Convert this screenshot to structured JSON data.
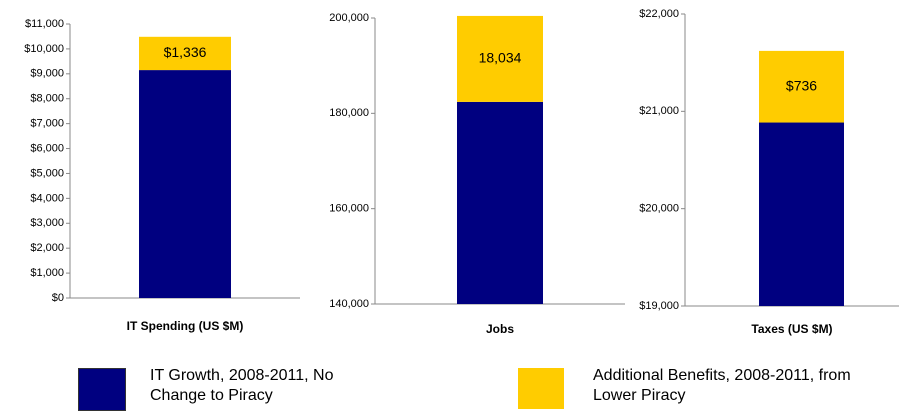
{
  "chart_data": [
    {
      "type": "bar",
      "categories": [
        "IT Spending (US $M)"
      ],
      "series": [
        {
          "name": "IT Growth, 2008-2011, No Change to Piracy",
          "color": "#000080",
          "values": [
            9150
          ]
        },
        {
          "name": "Additional Benefits, 2008-2011, from Lower Piracy",
          "color": "#ffcc00",
          "values": [
            1336
          ],
          "value_labels": [
            "$1,336"
          ]
        }
      ],
      "ylim": [
        0,
        11000
      ],
      "yticks": [
        {
          "value": 0,
          "label": "$0"
        },
        {
          "value": 1000,
          "label": "$1,000"
        },
        {
          "value": 2000,
          "label": "$2,000"
        },
        {
          "value": 3000,
          "label": "$3,000"
        },
        {
          "value": 4000,
          "label": "$4,000"
        },
        {
          "value": 5000,
          "label": "$5,000"
        },
        {
          "value": 6000,
          "label": "$6,000"
        },
        {
          "value": 7000,
          "label": "$7,000"
        },
        {
          "value": 8000,
          "label": "$8,000"
        },
        {
          "value": 9000,
          "label": "$9,000"
        },
        {
          "value": 10000,
          "label": "$10,000"
        },
        {
          "value": 11000,
          "label": "$11,000"
        }
      ]
    },
    {
      "type": "bar",
      "categories": [
        "Jobs"
      ],
      "series": [
        {
          "color": "#000080",
          "values": [
            182400
          ]
        },
        {
          "color": "#ffcc00",
          "values": [
            18034
          ],
          "value_labels": [
            "18,034"
          ]
        }
      ],
      "ylim": [
        140000,
        200000
      ],
      "yticks": [
        {
          "value": 140000,
          "label": "140,000"
        },
        {
          "value": 160000,
          "label": "160,000"
        },
        {
          "value": 180000,
          "label": "180,000"
        },
        {
          "value": 200000,
          "label": "200,000"
        }
      ]
    },
    {
      "type": "bar",
      "categories": [
        "Taxes (US $M)"
      ],
      "series": [
        {
          "color": "#000080",
          "values": [
            20885
          ]
        },
        {
          "color": "#ffcc00",
          "values": [
            736
          ],
          "value_labels": [
            "$736"
          ]
        }
      ],
      "ylim": [
        19000,
        22000
      ],
      "yticks": [
        {
          "value": 19000,
          "label": "$19,000"
        },
        {
          "value": 20000,
          "label": "$20,000"
        },
        {
          "value": 21000,
          "label": "$21,000"
        },
        {
          "value": 22000,
          "label": "$22,000"
        }
      ]
    }
  ]
}
